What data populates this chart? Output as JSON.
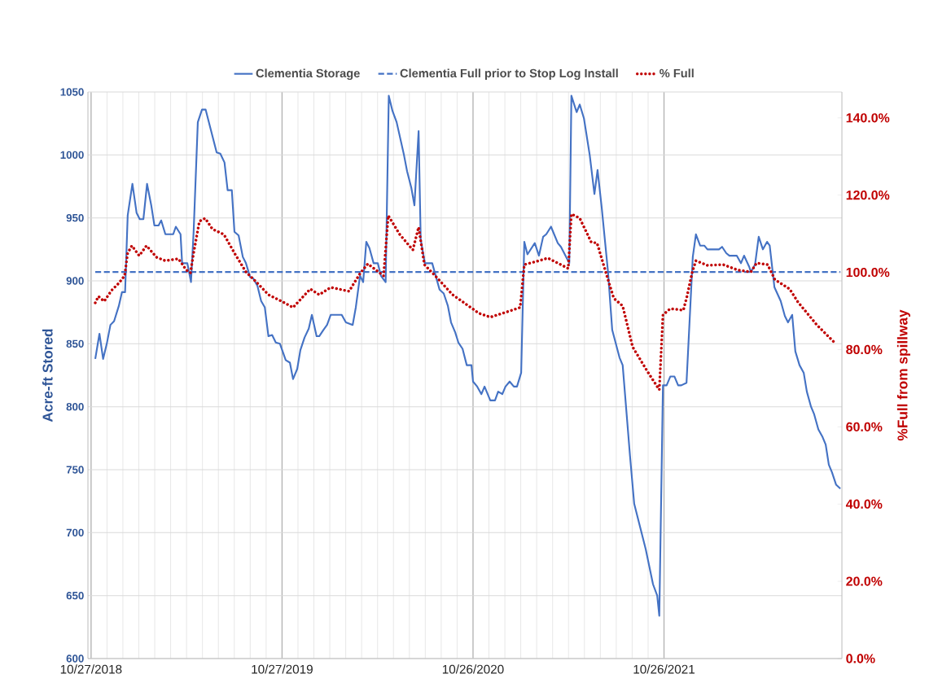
{
  "chart_data": {
    "type": "line",
    "xlim": [
      "2018-10-21",
      "2022-10-01"
    ],
    "xticks": [
      {
        "value": "2018-10-27",
        "label": "10/27/2018"
      },
      {
        "value": "2019-10-27",
        "label": "10/27/2019"
      },
      {
        "value": "2020-10-26",
        "label": "10/26/2020"
      },
      {
        "value": "2021-10-26",
        "label": "10/26/2021"
      }
    ],
    "ylim": [
      600,
      1050
    ],
    "yticks": [
      600,
      650,
      700,
      750,
      800,
      850,
      900,
      950,
      1000,
      1050
    ],
    "y2lim": [
      0,
      146.7
    ],
    "y2ticks": [
      {
        "value": 0,
        "label": "0.0%"
      },
      {
        "value": 20,
        "label": "20.0%"
      },
      {
        "value": 40,
        "label": "40.0%"
      },
      {
        "value": 60,
        "label": "60.0%"
      },
      {
        "value": 80,
        "label": "80.0%"
      },
      {
        "value": 100,
        "label": "100.0%"
      },
      {
        "value": 120,
        "label": "120.0%"
      },
      {
        "value": 140,
        "label": "140.0%"
      }
    ],
    "ylabel": "Acre-ft Stored",
    "y2label": "%Full from spillway",
    "grid": true,
    "legend": "top",
    "marker": "none",
    "series": [
      {
        "name": "Clementia Storage",
        "color": "#4472c4",
        "line_style": "solid",
        "x": [
          "2018-11-04",
          "2018-11-12",
          "2018-11-19",
          "2018-11-26",
          "2018-12-03",
          "2018-12-10",
          "2018-12-19",
          "2018-12-25",
          "2018-12-31",
          "2019-01-05",
          "2019-01-14",
          "2019-01-22",
          "2019-01-28",
          "2019-02-04",
          "2019-02-11",
          "2019-02-19",
          "2019-02-25",
          "2019-03-05",
          "2019-03-10",
          "2019-03-18",
          "2019-04-02",
          "2019-04-07",
          "2019-04-16",
          "2019-04-19",
          "2019-04-29",
          "2019-05-06",
          "2019-05-11",
          "2019-05-19",
          "2019-05-27",
          "2019-06-03",
          "2019-06-24",
          "2019-07-01",
          "2019-07-09",
          "2019-07-15",
          "2019-07-23",
          "2019-07-28",
          "2019-08-05",
          "2019-08-13",
          "2019-08-19",
          "2019-08-27",
          "2019-09-02",
          "2019-09-10",
          "2019-09-17",
          "2019-09-24",
          "2019-10-01",
          "2019-10-08",
          "2019-10-15",
          "2019-10-23",
          "2019-11-03",
          "2019-11-11",
          "2019-11-17",
          "2019-11-25",
          "2019-12-01",
          "2019-12-09",
          "2019-12-17",
          "2019-12-23",
          "2020-01-01",
          "2020-01-06",
          "2020-01-14",
          "2020-01-21",
          "2020-01-28",
          "2020-02-18",
          "2020-02-26",
          "2020-03-10",
          "2020-03-16",
          "2020-03-24",
          "2020-03-30",
          "2020-04-05",
          "2020-04-11",
          "2020-04-19",
          "2020-04-27",
          "2020-05-03",
          "2020-05-12",
          "2020-05-18",
          "2020-05-25",
          "2020-06-02",
          "2020-06-16",
          "2020-06-22",
          "2020-06-30",
          "2020-07-06",
          "2020-07-14",
          "2020-07-18",
          "2020-07-26",
          "2020-08-09",
          "2020-08-17",
          "2020-08-23",
          "2020-08-31",
          "2020-09-08",
          "2020-09-14",
          "2020-09-22",
          "2020-09-28",
          "2020-10-06",
          "2020-10-14",
          "2020-10-23",
          "2020-10-26",
          "2020-11-03",
          "2020-11-11",
          "2020-11-17",
          "2020-11-28",
          "2020-12-07",
          "2020-12-13",
          "2020-12-21",
          "2020-12-27",
          "2021-01-04",
          "2021-01-12",
          "2021-01-18",
          "2021-01-26",
          "2021-02-01",
          "2021-02-07",
          "2021-02-21",
          "2021-03-01",
          "2021-03-09",
          "2021-03-15",
          "2021-03-24",
          "2021-04-06",
          "2021-04-12",
          "2021-04-28",
          "2021-05-02",
          "2021-05-12",
          "2021-05-18",
          "2021-05-26",
          "2021-06-06",
          "2021-06-15",
          "2021-06-21",
          "2021-06-29",
          "2021-07-11",
          "2021-07-19",
          "2021-08-02",
          "2021-08-08",
          "2021-08-22",
          "2021-08-30",
          "2021-09-10",
          "2021-09-21",
          "2021-10-05",
          "2021-10-13",
          "2021-10-17",
          "2021-10-24",
          "2021-10-31",
          "2021-11-07",
          "2021-11-15",
          "2021-11-22",
          "2021-11-28",
          "2021-12-08",
          "2021-12-20",
          "2021-12-26",
          "2022-01-03",
          "2022-01-11",
          "2022-01-17",
          "2022-02-08",
          "2022-02-14",
          "2022-02-22",
          "2022-02-28",
          "2022-03-14",
          "2022-03-22",
          "2022-03-28",
          "2022-04-07",
          "2022-04-10",
          "2022-04-18",
          "2022-04-25",
          "2022-05-03",
          "2022-05-11",
          "2022-05-16",
          "2022-05-25",
          "2022-06-06",
          "2022-06-14",
          "2022-06-20",
          "2022-06-28",
          "2022-07-04",
          "2022-07-12",
          "2022-07-20",
          "2022-07-26",
          "2022-08-03",
          "2022-08-09",
          "2022-08-17",
          "2022-08-25",
          "2022-08-31",
          "2022-09-06",
          "2022-09-12",
          "2022-09-20",
          "2022-09-28"
        ],
        "values": [
          838,
          858,
          838,
          850,
          865,
          868,
          880,
          891,
          891,
          952,
          977,
          954,
          949,
          949,
          977,
          960,
          944,
          944,
          948,
          937,
          937,
          943,
          937,
          914,
          914,
          899,
          939,
          1026,
          1036,
          1036,
          1002,
          1001,
          994,
          972,
          972,
          939,
          936,
          919,
          914,
          903,
          902,
          896,
          884,
          879,
          856,
          857,
          851,
          850,
          837,
          835,
          822,
          830,
          845,
          855,
          862,
          873,
          856,
          856,
          861,
          865,
          873,
          873,
          867,
          865,
          879,
          904,
          899,
          931,
          926,
          914,
          914,
          904,
          899,
          1047,
          1035,
          1026,
          1000,
          987,
          974,
          960,
          1019,
          933,
          914,
          914,
          902,
          893,
          890,
          880,
          867,
          859,
          851,
          846,
          833,
          833,
          820,
          816,
          810,
          816,
          805,
          805,
          812,
          810,
          816,
          820,
          816,
          816,
          827,
          931,
          921,
          930,
          920,
          935,
          937,
          943,
          930,
          927,
          914,
          1047,
          1034,
          1040,
          1029,
          1000,
          969,
          988,
          958,
          907,
          861,
          839,
          833,
          761,
          723,
          705,
          687,
          659,
          650,
          634,
          817,
          817,
          824,
          824,
          817,
          817,
          819,
          919,
          937,
          928,
          928,
          925,
          925,
          927,
          922,
          920,
          920,
          914,
          920,
          911,
          907,
          913,
          935,
          925,
          931,
          928,
          895,
          884,
          872,
          867,
          873,
          844,
          833,
          827,
          812,
          800,
          794,
          782,
          776,
          770,
          754,
          748,
          738,
          735
        ]
      },
      {
        "name": "Clementia Full prior to Stop Log Install",
        "color": "#4472c4",
        "line_style": "dashed",
        "x": [
          "2018-11-04",
          "2022-09-28"
        ],
        "values": [
          907,
          907
        ]
      },
      {
        "name": "% Full",
        "color": "#c00000",
        "line_style": "dotted",
        "axis": "y2",
        "x": [
          "2018-11-04",
          "2018-11-10",
          "2018-11-21",
          "2018-12-05",
          "2018-12-19",
          "2018-12-30",
          "2019-01-05",
          "2019-01-13",
          "2019-01-27",
          "2019-02-10",
          "2019-03-01",
          "2019-03-18",
          "2019-04-12",
          "2019-04-27",
          "2019-05-05",
          "2019-05-11",
          "2019-05-22",
          "2019-06-02",
          "2019-06-16",
          "2019-07-08",
          "2019-07-28",
          "2019-08-19",
          "2019-09-10",
          "2019-10-01",
          "2019-10-29",
          "2019-11-17",
          "2019-12-20",
          "2020-01-06",
          "2020-01-28",
          "2020-03-03",
          "2020-03-25",
          "2020-04-08",
          "2020-05-08",
          "2020-05-17",
          "2020-06-08",
          "2020-07-03",
          "2020-07-14",
          "2020-07-25",
          "2020-08-12",
          "2020-09-17",
          "2020-10-29",
          "2020-11-06",
          "2020-11-28",
          "2021-01-02",
          "2021-01-24",
          "2021-02-01",
          "2021-03-01",
          "2021-03-18",
          "2021-04-26",
          "2021-05-02",
          "2021-05-18",
          "2021-06-09",
          "2021-06-20",
          "2021-07-11",
          "2021-07-22",
          "2021-08-08",
          "2021-08-27",
          "2021-09-24",
          "2021-10-17",
          "2021-10-24",
          "2021-11-07",
          "2021-12-02",
          "2021-12-09",
          "2021-12-19",
          "2021-12-26",
          "2022-01-17",
          "2022-02-16",
          "2022-03-16",
          "2022-04-10",
          "2022-04-21",
          "2022-05-12",
          "2022-05-26",
          "2022-06-23",
          "2022-07-09",
          "2022-08-14",
          "2022-09-17"
        ],
        "values": [
          92.1,
          93.8,
          92.5,
          95.3,
          97.2,
          99.1,
          105.0,
          106.9,
          104.3,
          106.9,
          103.9,
          103.0,
          103.5,
          100.6,
          99.9,
          105.0,
          113.2,
          114.0,
          111.2,
          109.8,
          105.0,
          100.1,
          97.2,
          94.2,
          92.3,
          90.9,
          95.7,
          94.2,
          96.1,
          95.1,
          99.9,
          102.2,
          99.1,
          114.7,
          109.8,
          105.8,
          111.7,
          102.0,
          99.5,
          94.2,
          90.2,
          89.4,
          88.4,
          89.9,
          90.9,
          102.0,
          103.0,
          103.7,
          101.0,
          115.1,
          114.0,
          107.8,
          107.6,
          98.1,
          93.3,
          91.3,
          80.7,
          74.4,
          69.6,
          89.0,
          90.6,
          90.2,
          93.8,
          100.1,
          103.0,
          101.8,
          102.0,
          100.6,
          100.1,
          102.4,
          102.0,
          98.1,
          95.7,
          92.3,
          86.4,
          81.8
        ]
      }
    ]
  }
}
